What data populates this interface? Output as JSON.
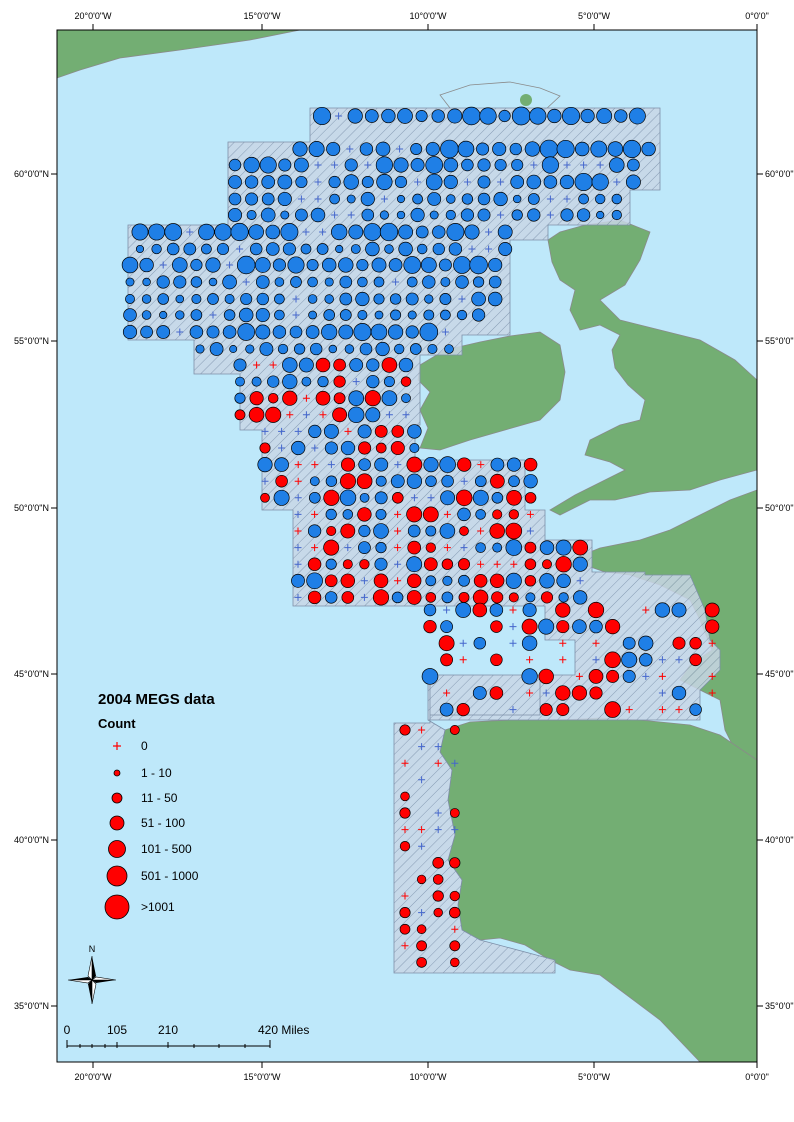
{
  "map": {
    "title": "2004 MEGS data",
    "legend_heading": "Count",
    "colors": {
      "sea": "#bee8fa",
      "land": "#73ae73",
      "coast": "#8a8a8a",
      "survey_area": "#c9d6e6",
      "hatch": "#7d8fa8",
      "positive_red": "#ff0000",
      "large_blue": "#1f7fe6",
      "zero_red": "#ff0000",
      "zero_blue": "#4466cc"
    },
    "longitude_ticks": [
      "20°0'0\"W",
      "15°0'0\"W",
      "10°0'0\"W",
      "5°0'0\"W",
      "0°0'0\""
    ],
    "latitude_ticks": [
      "60°0'0\"N",
      "55°0'0\"N",
      "50°0'0\"N",
      "45°0'0\"N",
      "40°0'0\"N",
      "35°0'0\"N"
    ],
    "legend": [
      {
        "label": "0",
        "symbol": "plus"
      },
      {
        "label": "1 - 10",
        "symbol": "circle"
      },
      {
        "label": "11 - 50",
        "symbol": "circle"
      },
      {
        "label": "51 - 100",
        "symbol": "circle"
      },
      {
        "label": "101 - 500",
        "symbol": "circle"
      },
      {
        "label": "501 - 1000",
        "symbol": "circle"
      },
      {
        "label": ">1001",
        "symbol": "circle"
      }
    ],
    "scale_bar": {
      "labels": [
        "0",
        "105",
        "210",
        "420 Miles"
      ]
    },
    "north_arrow": {
      "label": "N",
      "icon": "north-arrow-icon"
    }
  }
}
